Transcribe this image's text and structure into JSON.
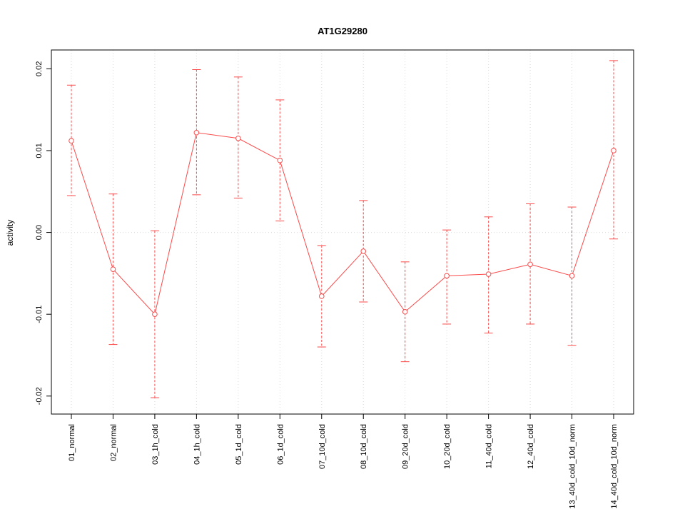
{
  "figure": {
    "title": "AT1G29280",
    "ylabel": "activity"
  },
  "chart_data": {
    "type": "line",
    "title": "AT1G29280",
    "xlabel": "",
    "ylabel": "activity",
    "categories": [
      "01_normal",
      "02_normal",
      "03_1h_cold",
      "04_1h_cold",
      "05_1d_cold",
      "06_1d_cold",
      "07_10d_cold",
      "08_10d_cold",
      "09_20d_cold",
      "10_20d_cold",
      "11_40d_cold",
      "12_40d_cold",
      "13_40d_cold_10d_norm",
      "14_40d_cold_10d_norm"
    ],
    "series": [
      {
        "name": "mean",
        "values": [
          0.0112,
          -0.0045,
          -0.01,
          0.0122,
          0.0115,
          0.0088,
          -0.0078,
          -0.0023,
          -0.0097,
          -0.0053,
          -0.0051,
          -0.0039,
          -0.0053,
          0.01
        ]
      },
      {
        "name": "upper",
        "values": [
          0.018,
          0.0047,
          0.0002,
          0.0199,
          0.019,
          0.0162,
          -0.0016,
          0.0039,
          -0.0036,
          0.0003,
          0.0019,
          0.0035,
          0.0031,
          0.021
        ]
      },
      {
        "name": "lower",
        "values": [
          0.0045,
          -0.0137,
          -0.0202,
          0.0046,
          0.0042,
          0.0014,
          -0.014,
          -0.0085,
          -0.0158,
          -0.0112,
          -0.0123,
          -0.0112,
          -0.0138,
          -0.0008
        ]
      }
    ],
    "ylim": [
      -0.0222,
      0.0223
    ],
    "yticks": [
      -0.02,
      -0.01,
      0.0,
      0.01,
      0.02
    ],
    "ytick_labels": [
      "-0.02",
      "-0.01",
      "0.00",
      "0.01",
      "0.02"
    ],
    "grid": "dotted vertical at each category, dotted horizontal at 0",
    "legend_position": "none",
    "colors": {
      "series": "#fb4a4a",
      "grid": "#d9d9d9",
      "axis": "#000000",
      "background": "#ffffff"
    }
  }
}
